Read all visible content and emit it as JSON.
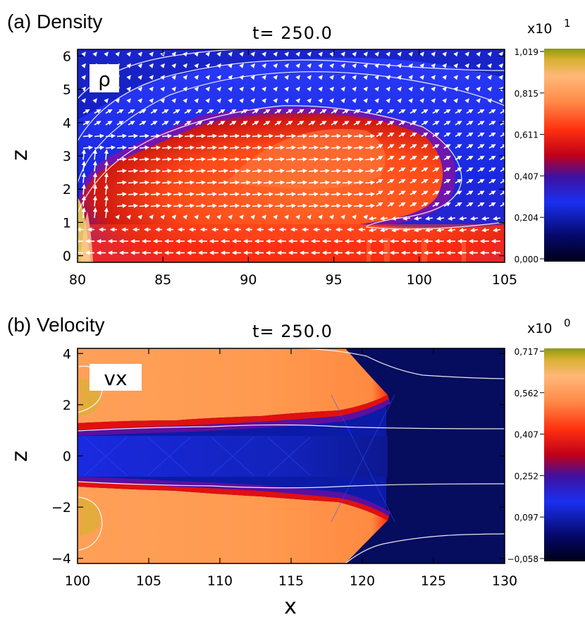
{
  "chart_data": [
    {
      "type": "heatmap",
      "panel_label": "(a) Density",
      "title": "t= 250.0",
      "variable_label": "ρ",
      "xlabel": "",
      "ylabel": "z",
      "xlim": [
        80,
        105
      ],
      "ylim": [
        -0.2,
        6.2
      ],
      "x_ticks": [
        "80",
        "85",
        "90",
        "95",
        "100",
        "105"
      ],
      "x_tick_values": [
        80,
        85,
        90,
        95,
        100,
        105
      ],
      "y_ticks": [
        "0",
        "1",
        "2",
        "3",
        "4",
        "5",
        "6"
      ],
      "y_tick_values": [
        0,
        1,
        2,
        3,
        4,
        5,
        6
      ],
      "colorbar": {
        "multiplier": "x10",
        "exponent": "1",
        "tick_labels": [
          "1,019",
          "0,815",
          "0,611",
          "0,407",
          "0,204",
          "0,000"
        ],
        "min": 0.0,
        "max": 1.019
      },
      "overlays": [
        "velocity vectors (white arrows)",
        "contour lines (white)"
      ]
    },
    {
      "type": "heatmap",
      "panel_label": "(b) Velocity",
      "title": "t= 250.0",
      "variable_label": "vx",
      "xlabel": "x",
      "ylabel": "z",
      "xlim": [
        100,
        130
      ],
      "ylim": [
        -4.2,
        4.2
      ],
      "x_ticks": [
        "100",
        "105",
        "110",
        "115",
        "120",
        "125",
        "130"
      ],
      "x_tick_values": [
        100,
        105,
        110,
        115,
        120,
        125,
        130
      ],
      "y_ticks": [
        "4",
        "2",
        "0",
        "−2",
        "−4"
      ],
      "y_tick_values": [
        4,
        2,
        0,
        -2,
        -4
      ],
      "colorbar": {
        "multiplier": "x10",
        "exponent": "0",
        "tick_labels": [
          "0,717",
          "0,562",
          "0,407",
          "0,252",
          "0,097",
          "−0,058"
        ],
        "min": -0.058,
        "max": 0.717
      },
      "overlays": [
        "contour lines (white)"
      ]
    }
  ],
  "colors": {
    "colormap": [
      "#000020",
      "#0a0a70",
      "#1a2ae0",
      "#3a10b0",
      "#b00020",
      "#ff2a10",
      "#ff8040",
      "#ffb070",
      "#e0c030",
      "#909a10"
    ],
    "field_blue": "#1a2ae0",
    "field_deep_blue": "#0a1270",
    "field_orange": "#ff9a50"
  }
}
